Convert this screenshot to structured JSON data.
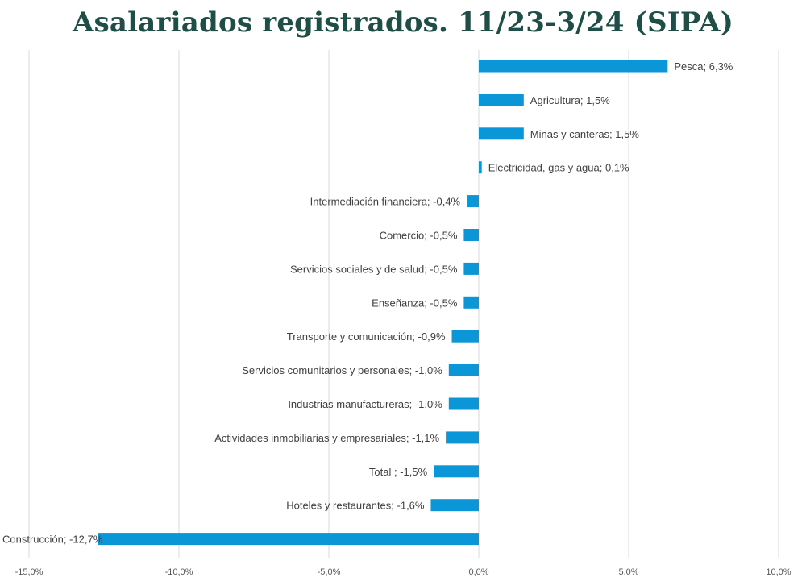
{
  "chart_data": {
    "type": "bar",
    "orientation": "horizontal",
    "title": "Asalariados registrados. 11/23-3/24 (SIPA)",
    "xlim": [
      -15,
      10
    ],
    "xticks": [
      -15,
      -10,
      -5,
      0,
      5,
      10
    ],
    "xtick_labels": [
      "-15,0%",
      "-10,0%",
      "-5,0%",
      "0,0%",
      "5,0%",
      "10,0%"
    ],
    "grid": "vertical",
    "bar_color": "#0b96d8",
    "categories": [
      "Pesca",
      "Agricultura",
      "Minas y canteras",
      "Electricidad, gas y agua",
      "Intermediación financiera",
      "Comercio",
      "Servicios sociales y de salud",
      "Enseñanza",
      "Transporte y comunicación",
      "Servicios comunitarios y personales",
      "Industrias manufactureras",
      "Actividades inmobiliarias y empresariales",
      "Total ",
      "Hoteles y restaurantes",
      "Construcción"
    ],
    "values": [
      6.3,
      1.5,
      1.5,
      0.1,
      -0.4,
      -0.5,
      -0.5,
      -0.5,
      -0.9,
      -1.0,
      -1.0,
      -1.1,
      -1.5,
      -1.6,
      -12.7
    ],
    "data_labels": [
      "Pesca; 6,3%",
      "Agricultura; 1,5%",
      "Minas y canteras; 1,5%",
      "Electricidad, gas y agua; 0,1%",
      "Intermediación financiera; -0,4%",
      "Comercio; -0,5%",
      "Servicios sociales y de salud; -0,5%",
      "Enseñanza; -0,5%",
      "Transporte y comunicación; -0,9%",
      "Servicios comunitarios y personales; -1,0%",
      "Industrias manufactureras; -1,0%",
      "Actividades inmobiliarias y empresariales; -1,1%",
      "Total ; -1,5%",
      "Hoteles y restaurantes; -1,6%",
      "Construcción; -12,7%"
    ]
  }
}
